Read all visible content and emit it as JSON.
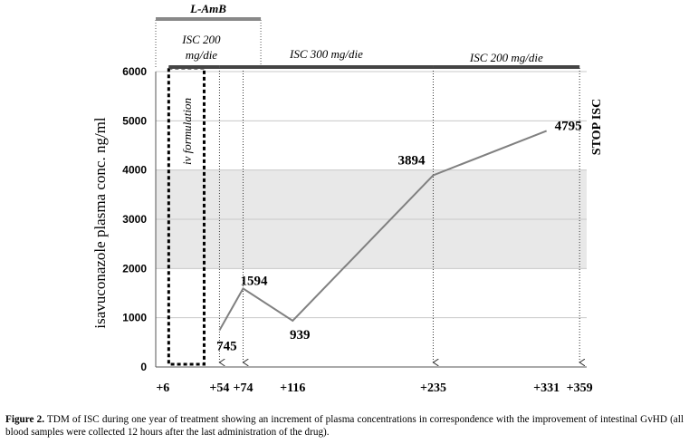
{
  "chart_data": {
    "type": "line",
    "ylabel": "isavuconazole plasma conc.  ng/ml",
    "ylim": [
      0,
      6000
    ],
    "yticks": [
      0,
      1000,
      2000,
      3000,
      4000,
      5000,
      6000
    ],
    "xlim": [
      0,
      365
    ],
    "x_tick_labels": [
      {
        "x": 6,
        "label": "+6"
      },
      {
        "x": 54,
        "label": "+54"
      },
      {
        "x": 74,
        "label": "+74"
      },
      {
        "x": 116,
        "label": "+116"
      },
      {
        "x": 235,
        "label": "+235"
      },
      {
        "x": 331,
        "label": "+331"
      },
      {
        "x": 359,
        "label": "+359"
      }
    ],
    "series": [
      {
        "x": [
          54,
          74,
          116,
          235,
          331
        ],
        "values": [
          745,
          1594,
          939,
          3894,
          4795
        ]
      }
    ],
    "data_labels": [
      "745",
      "1594",
      "939",
      "3894",
      "4795"
    ],
    "therapeutic_band": [
      2000,
      4000
    ],
    "grid": true,
    "treatment_bars": [
      {
        "label": "L-AmB",
        "x_start": 0,
        "x_end": 89,
        "color": "#888888",
        "level": "top"
      },
      {
        "label": "ISC 200 mg/die",
        "x_start": 11,
        "x_end": 54,
        "color": "#444444",
        "level": "mid"
      },
      {
        "label": "ISC 300 mg/die",
        "x_start": 54,
        "x_end": 235,
        "color": "#444444",
        "level": "mid"
      },
      {
        "label": "ISC 200 mg/die",
        "x_start": 235,
        "x_end": 359,
        "color": "#444444",
        "level": "mid"
      }
    ],
    "dose_markers_x": [
      54,
      74,
      235,
      359
    ],
    "iv_box": {
      "label": "iv formulation",
      "x_start": 11,
      "x_end": 41
    },
    "stop_label": "STOP  ISC",
    "colors": {
      "line": "#808080",
      "band": "#e8e8e8",
      "grid": "#c8c8c8"
    }
  },
  "caption": {
    "prefix": "Figure 2.",
    "text": " TDM of ISC during one year of treatment showing an increment of plasma concentrations in correspondence with the improvement of intestinal GvHD (all blood samples were collected 12 hours after the last administration of the drug)."
  }
}
